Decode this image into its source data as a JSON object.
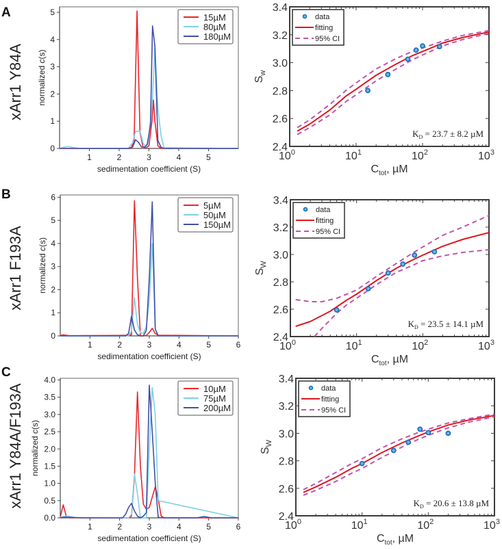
{
  "chart_data": [
    {
      "panel": "A",
      "row_label": "xArr1 Y84A",
      "left": {
        "type": "line",
        "title": "",
        "xlabel": "sedimentation coefficient (S)",
        "ylabel_prefix": "normalized ",
        "ylabel_italic": "c",
        "ylabel_suffix": "(s)",
        "xlim": [
          0,
          6
        ],
        "ylim": [
          0,
          5.2
        ],
        "xticks": [
          1,
          2,
          3,
          4,
          5
        ],
        "yticks": [
          0,
          1,
          2,
          3,
          4,
          5
        ],
        "ytick_labels": [
          "0",
          "1",
          "2",
          "3",
          "4",
          "5"
        ],
        "legend_position": "top-right",
        "series": [
          {
            "name": "15µM",
            "color": "#e8242b",
            "x": [
              0,
              2.0,
              2.4,
              2.5,
              2.6,
              2.7,
              2.8,
              2.9,
              3.0,
              3.1,
              3.15,
              3.2,
              3.3,
              3.4,
              6
            ],
            "y": [
              0,
              0,
              0,
              0.3,
              5.05,
              0.6,
              0.05,
              0.02,
              0.1,
              1.0,
              1.78,
              1.0,
              0.1,
              0,
              0
            ]
          },
          {
            "name": "80µM",
            "color": "#7fd0e6",
            "x": [
              0,
              0.15,
              0.3,
              0.45,
              0.7,
              2.3,
              2.45,
              2.55,
              2.7,
              2.8,
              2.9,
              3.0,
              3.1,
              3.2,
              3.3,
              3.4,
              3.5,
              4,
              6
            ],
            "y": [
              0,
              0.05,
              0.07,
              0.04,
              0,
              0,
              0.2,
              0.62,
              0.64,
              0.2,
              0.05,
              0.5,
              1.5,
              3.7,
              1.5,
              0.5,
              0.03,
              0.02,
              0
            ]
          },
          {
            "name": "180µM",
            "color": "#3f4fa8",
            "x": [
              0,
              2.3,
              2.45,
              2.55,
              2.65,
              2.75,
              2.85,
              2.95,
              3.05,
              3.12,
              3.2,
              3.3,
              3.4,
              3.5,
              6
            ],
            "y": [
              0,
              0,
              0.05,
              0.32,
              0.22,
              0.05,
              0.05,
              0.15,
              0.9,
              4.5,
              3.75,
              0.3,
              0.05,
              0,
              0
            ]
          }
        ]
      },
      "right": {
        "type": "scatter",
        "xlabel_main": "C",
        "xlabel_sub": "tot",
        "xlabel_unit": ", µM",
        "ylabel_main": "S",
        "ylabel_sub": "w",
        "xscale": "log",
        "xlim": [
          1,
          1000
        ],
        "ylim": [
          2.4,
          3.4
        ],
        "xtick_exponents": [
          "0",
          "1",
          "2",
          "3"
        ],
        "yticks": [
          2.4,
          2.6,
          2.8,
          3.0,
          3.2,
          3.4
        ],
        "ytick_labels": [
          "2.4",
          "2.6",
          "2.8",
          "3.0",
          "3.2",
          "3.4"
        ],
        "legend_position": "top-left",
        "legend": [
          "data",
          "fitting",
          "95% CI"
        ],
        "data_points": {
          "x": [
            15,
            30,
            60,
            80,
            100,
            180
          ],
          "y": [
            2.8,
            2.915,
            3.025,
            3.09,
            3.12,
            3.115
          ]
        },
        "fit": {
          "x": [
            1.3,
            2,
            4,
            7,
            10,
            20,
            40,
            70,
            100,
            200,
            400,
            1000
          ],
          "y": [
            2.51,
            2.56,
            2.66,
            2.76,
            2.81,
            2.91,
            2.99,
            3.05,
            3.08,
            3.14,
            3.18,
            3.22
          ]
        },
        "ci_upper": {
          "x": [
            1.3,
            2,
            4,
            7,
            10,
            20,
            40,
            70,
            100,
            200,
            400,
            1000
          ],
          "y": [
            2.535,
            2.59,
            2.7,
            2.8,
            2.855,
            2.955,
            3.03,
            3.08,
            3.105,
            3.155,
            3.195,
            3.23
          ]
        },
        "ci_lower": {
          "x": [
            1.3,
            2,
            4,
            7,
            10,
            20,
            40,
            70,
            100,
            200,
            400,
            1000
          ],
          "y": [
            2.485,
            2.535,
            2.625,
            2.72,
            2.77,
            2.87,
            2.955,
            3.02,
            3.055,
            3.12,
            3.165,
            3.21
          ]
        },
        "annotation": {
          "prefix": "K",
          "sub": "D",
          "text": " = 23.7 ± 8.2 µM"
        },
        "colors": {
          "data": "#1a72bd",
          "fit": "#e0161e",
          "ci": "#c153a9"
        }
      }
    },
    {
      "panel": "B",
      "row_label": "xArr1 F193A",
      "left": {
        "type": "line",
        "xlabel": "sedimentation coefficient (S)",
        "ylabel_prefix": "normalized ",
        "ylabel_italic": "c",
        "ylabel_suffix": "(s)",
        "xlim": [
          0,
          6
        ],
        "ylim": [
          0,
          6.1
        ],
        "xticks": [
          1,
          2,
          3,
          4,
          5,
          6
        ],
        "yticks": [
          0,
          1,
          2,
          3,
          4,
          5,
          6
        ],
        "ytick_labels": [
          "0",
          "1",
          "2",
          "3",
          "4",
          "5",
          "6"
        ],
        "legend_position": "top-right",
        "series": [
          {
            "name": "5µM",
            "color": "#e8242b",
            "x": [
              0,
              0.1,
              0.3,
              2.0,
              2.3,
              2.4,
              2.5,
              2.6,
              2.7,
              2.8,
              2.9,
              3.0,
              3.1,
              3.2,
              3.3,
              4,
              6
            ],
            "y": [
              0.02,
              0.04,
              0.01,
              0.02,
              0.03,
              0.05,
              5.85,
              2.5,
              0,
              0,
              0.02,
              0.15,
              0.33,
              0.1,
              0.03,
              0.02,
              0
            ]
          },
          {
            "name": "50µM",
            "color": "#7fd0e6",
            "x": [
              0,
              2.3,
              2.4,
              2.5,
              2.6,
              2.7,
              2.8,
              2.9,
              3.0,
              3.1,
              3.2,
              3.3,
              6
            ],
            "y": [
              0,
              0,
              0.2,
              1.65,
              0.5,
              0.12,
              0.12,
              0.4,
              1.5,
              4.0,
              0.3,
              0,
              0
            ]
          },
          {
            "name": "150µM",
            "color": "#3f4fa8",
            "x": [
              0,
              2.2,
              2.3,
              2.4,
              2.5,
              2.6,
              2.7,
              2.8,
              2.9,
              3.0,
              3.1,
              3.2,
              3.3,
              6
            ],
            "y": [
              0,
              0,
              0.1,
              0.85,
              0.25,
              0.05,
              0,
              0,
              0.25,
              2.5,
              5.8,
              0.3,
              0,
              0
            ]
          }
        ]
      },
      "right": {
        "type": "scatter",
        "xlabel_main": "C",
        "xlabel_sub": "tot",
        "xlabel_unit": ", µM",
        "ylabel_main": "S",
        "ylabel_sub": "W",
        "xscale": "log",
        "xlim": [
          1,
          1000
        ],
        "ylim": [
          2.4,
          3.4
        ],
        "xtick_exponents": [
          "0",
          "1",
          "2",
          "3"
        ],
        "yticks": [
          2.4,
          2.6,
          2.8,
          3.0,
          3.2,
          3.4
        ],
        "ytick_labels": [
          "2.4",
          "2.6",
          "2.8",
          "3.0",
          "3.2",
          "3.4"
        ],
        "legend_position": "top-left",
        "legend": [
          "data",
          "fitting",
          "95% CI"
        ],
        "data_points": {
          "x": [
            5,
            15,
            30,
            50,
            75,
            150
          ],
          "y": [
            2.595,
            2.75,
            2.865,
            2.93,
            2.995,
            3.02
          ]
        },
        "fit": {
          "x": [
            1.2,
            2,
            4,
            7,
            10,
            20,
            40,
            70,
            100,
            200,
            400,
            1000
          ],
          "y": [
            2.475,
            2.51,
            2.585,
            2.665,
            2.71,
            2.81,
            2.9,
            2.96,
            2.995,
            3.06,
            3.11,
            3.16
          ]
        },
        "ci_upper": {
          "x": [
            1.2,
            2,
            3,
            5,
            10,
            20,
            40,
            70,
            100,
            200,
            400,
            1000
          ],
          "y": [
            2.67,
            2.655,
            2.655,
            2.68,
            2.74,
            2.84,
            2.935,
            3.01,
            3.055,
            3.14,
            3.2,
            3.285
          ]
        },
        "ci_lower": {
          "x": [
            2.3,
            3,
            5,
            7,
            10,
            20,
            40,
            70,
            100,
            200,
            400,
            1000
          ],
          "y": [
            2.4,
            2.46,
            2.57,
            2.63,
            2.68,
            2.78,
            2.87,
            2.92,
            2.955,
            2.99,
            3.015,
            3.035
          ]
        },
        "annotation": {
          "prefix": "K",
          "sub": "D",
          "text": " = 23.5 ± 14.1 µM"
        },
        "colors": {
          "data": "#1a72bd",
          "fit": "#e0161e",
          "ci": "#c153a9"
        }
      }
    },
    {
      "panel": "C",
      "row_label": "xArr1 Y84A/F193A",
      "left": {
        "type": "line",
        "xlabel": "sedimentation coefficient (S)",
        "ylabel_prefix": "normalized ",
        "ylabel_italic": "c",
        "ylabel_suffix": "(s)",
        "xlim": [
          0,
          6
        ],
        "ylim": [
          0,
          4.05
        ],
        "xticks": [
          1,
          2,
          3,
          4,
          5,
          6
        ],
        "yticks": [
          0,
          0.5,
          1,
          1.5,
          2,
          2.5,
          3,
          3.5,
          4
        ],
        "ytick_labels": [
          "0.0",
          "0.5",
          "1.0",
          "1.5",
          "2.0",
          "2.5",
          "3.0",
          "3.5",
          "4.0"
        ],
        "legend_position": "top-right",
        "series": [
          {
            "name": "10µM",
            "color": "#e8242b",
            "x": [
              0,
              0.1,
              0.2,
              0.3,
              2.3,
              2.4,
              2.5,
              2.6,
              2.7,
              2.8,
              2.9,
              3.0,
              3.1,
              3.2,
              3.3,
              3.4,
              3.5,
              6
            ],
            "y": [
              0.02,
              0.38,
              0.05,
              0,
              0,
              0.05,
              1.2,
              3.65,
              1.5,
              0.4,
              0.25,
              0.3,
              0.6,
              0.9,
              0.55,
              0.05,
              0,
              0
            ]
          },
          {
            "name": "75µM",
            "color": "#7fd0e6",
            "x": [
              0,
              0.15,
              0.3,
              0.5,
              2.3,
              2.4,
              2.5,
              2.6,
              2.7,
              2.8,
              2.9,
              3.0,
              3.1,
              3.2,
              3.3,
              6
            ],
            "y": [
              0.02,
              0.04,
              0.05,
              0.01,
              0,
              0.1,
              1.28,
              0.7,
              0,
              0,
              0,
              2.0,
              3.78,
              3.0,
              0.5,
              0
            ]
          },
          {
            "name": "200µM",
            "color": "#3f4fa8",
            "x": [
              0,
              0.1,
              0.2,
              0.8,
              2.1,
              2.2,
              2.3,
              2.4,
              2.5,
              2.6,
              2.7,
              2.8,
              2.9,
              3.0,
              3.1,
              3.2,
              3.3,
              3.4,
              4.6,
              4.85,
              5.1,
              6
            ],
            "y": [
              0,
              0.02,
              0.02,
              0,
              0,
              0.1,
              0.3,
              0.42,
              0.2,
              0.05,
              0,
              0.05,
              0.15,
              3.85,
              2.5,
              1.0,
              0.02,
              0,
              0,
              0.04,
              0,
              0
            ]
          }
        ]
      },
      "right": {
        "type": "scatter",
        "xlabel_main": "C",
        "xlabel_sub": "tot",
        "xlabel_unit": ", µM",
        "ylabel_main": "S",
        "ylabel_sub": "W",
        "xscale": "log",
        "xlim": [
          1,
          1000
        ],
        "ylim": [
          2.4,
          3.4
        ],
        "xtick_exponents": [
          "0",
          "1",
          "2",
          "3"
        ],
        "yticks": [
          2.4,
          2.6,
          2.8,
          3.0,
          3.2,
          3.4
        ],
        "ytick_labels": [
          "2.4",
          "2.6",
          "2.8",
          "3.0",
          "3.2",
          "3.4"
        ],
        "legend_position": "top-left",
        "legend": [
          "data",
          "fitting",
          "95% CI"
        ],
        "data_points": {
          "x": [
            10,
            30,
            50,
            75,
            100,
            200
          ],
          "y": [
            2.78,
            2.875,
            2.935,
            3.03,
            3.005,
            3.0
          ]
        },
        "fit": {
          "x": [
            1.3,
            2,
            4,
            7,
            10,
            20,
            40,
            70,
            100,
            200,
            400,
            1000
          ],
          "y": [
            2.57,
            2.61,
            2.68,
            2.745,
            2.78,
            2.86,
            2.93,
            2.98,
            3.01,
            3.06,
            3.095,
            3.13
          ]
        },
        "ci_upper": {
          "x": [
            1.3,
            2,
            4,
            7,
            10,
            20,
            40,
            70,
            100,
            200,
            400,
            1000
          ],
          "y": [
            2.59,
            2.635,
            2.715,
            2.78,
            2.815,
            2.895,
            2.96,
            3.005,
            3.03,
            3.075,
            3.105,
            3.14
          ]
        },
        "ci_lower": {
          "x": [
            1.3,
            2,
            4,
            7,
            10,
            20,
            40,
            70,
            100,
            200,
            400,
            1000
          ],
          "y": [
            2.55,
            2.585,
            2.65,
            2.71,
            2.745,
            2.825,
            2.9,
            2.955,
            2.985,
            3.04,
            3.08,
            3.12
          ]
        },
        "annotation": {
          "prefix": "K",
          "sub": "D",
          "text": " = 20.6 ± 13.8 µM"
        },
        "colors": {
          "data": "#1a72bd",
          "fit": "#e0161e",
          "ci": "#c153a9"
        }
      }
    }
  ]
}
